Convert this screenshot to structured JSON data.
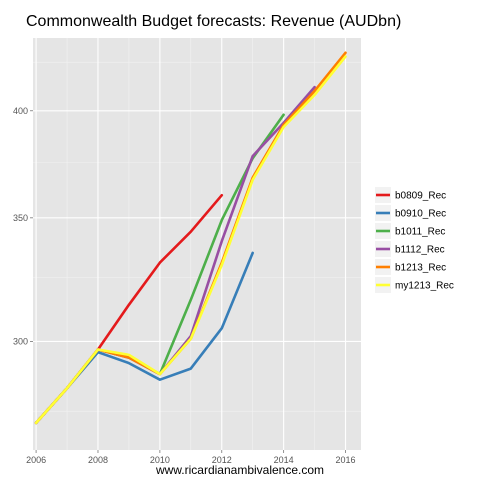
{
  "chart_data": {
    "type": "line",
    "title": "Commonwealth Budget forecasts: Revenue (AUDbn)",
    "xlabel": "www.ricardianambivalence.com",
    "ylabel": "",
    "y_scale": "log",
    "xlim": [
      2005.9,
      2016.5
    ],
    "ylim": [
      262,
      438
    ],
    "x_ticks": [
      2006,
      2008,
      2010,
      2012,
      2014,
      2016
    ],
    "y_ticks": [
      300,
      350,
      400
    ],
    "grid": true,
    "legend_position": "right",
    "series": [
      {
        "name": "b0809_Rec",
        "color": "#e41a1c",
        "x": [
          2006,
          2007,
          2008,
          2009,
          2010,
          2011,
          2012
        ],
        "y": [
          271,
          283,
          297,
          314,
          331,
          344,
          360
        ]
      },
      {
        "name": "b0910_Rec",
        "color": "#377eb8",
        "x": [
          2006,
          2007,
          2008,
          2009,
          2010,
          2011,
          2012,
          2013
        ],
        "y": [
          271,
          283,
          296,
          292,
          286,
          290,
          305,
          335
        ]
      },
      {
        "name": "b1011_Rec",
        "color": "#4daf4a",
        "x": [
          2006,
          2007,
          2008,
          2009,
          2010,
          2011,
          2012,
          2013,
          2014
        ],
        "y": [
          271,
          283,
          297,
          294,
          288,
          316,
          349,
          377,
          398
        ]
      },
      {
        "name": "b1112_Rec",
        "color": "#984ea3",
        "x": [
          2006,
          2007,
          2008,
          2009,
          2010,
          2011,
          2012,
          2013,
          2014,
          2015
        ],
        "y": [
          271,
          283,
          297,
          294,
          288,
          302,
          340,
          378,
          394,
          412
        ]
      },
      {
        "name": "b1213_Rec",
        "color": "#ff7f00",
        "x": [
          2006,
          2007,
          2008,
          2009,
          2010,
          2011,
          2012,
          2013,
          2014,
          2015,
          2016
        ],
        "y": [
          271,
          283,
          297,
          294,
          288,
          301,
          331,
          368,
          393,
          410,
          430
        ]
      },
      {
        "name": "my1213_Rec",
        "color": "#ffff33",
        "x": [
          2006,
          2007,
          2008,
          2009,
          2010,
          2011,
          2012,
          2013,
          2014,
          2015,
          2016
        ],
        "y": [
          271,
          283,
          297,
          295,
          288,
          301,
          330,
          367,
          392,
          408,
          428
        ]
      }
    ]
  }
}
